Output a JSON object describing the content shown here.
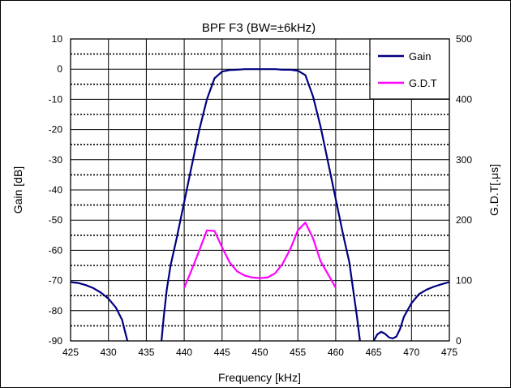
{
  "chart_data": {
    "type": "line",
    "title": "BPF F3 (BW=±6kHz)",
    "xlabel": "Frequency [kHz]",
    "ylabel": "Gain [dB]",
    "y2label": "G.D.T[.μs]",
    "xlim": [
      425,
      475
    ],
    "ylim": [
      -90,
      10
    ],
    "y2lim": [
      0,
      500
    ],
    "x_ticks": [
      "425",
      "430",
      "435",
      "440",
      "445",
      "450",
      "455",
      "460",
      "465",
      "470",
      "475"
    ],
    "y_ticks": [
      "10",
      "0",
      "-10",
      "-20",
      "-30",
      "-40",
      "-50",
      "-60",
      "-70",
      "-80",
      "-90"
    ],
    "y2_ticks": [
      "500",
      "400",
      "300",
      "200",
      "100",
      "0"
    ],
    "grid": true,
    "legend_position": "top-right",
    "series": [
      {
        "name": "Gain",
        "axis": "left",
        "color": "#000080",
        "segments": [
          [
            [
              425,
              -70.5
            ],
            [
              426,
              -70.8
            ],
            [
              427,
              -71.5
            ],
            [
              428,
              -72.5
            ],
            [
              429,
              -74
            ],
            [
              430,
              -76
            ],
            [
              431,
              -79
            ],
            [
              431.8,
              -83
            ],
            [
              432.3,
              -88
            ],
            [
              432.5,
              -90
            ]
          ],
          [
            [
              437,
              -90
            ],
            [
              437.3,
              -82
            ],
            [
              437.7,
              -73
            ],
            [
              438.2,
              -65
            ],
            [
              439,
              -56
            ],
            [
              440,
              -44
            ],
            [
              441,
              -32
            ],
            [
              442,
              -20
            ],
            [
              443,
              -10
            ],
            [
              444,
              -3
            ],
            [
              445,
              -0.8
            ],
            [
              446,
              -0.3
            ],
            [
              447,
              -0.2
            ],
            [
              448,
              0
            ],
            [
              450,
              0
            ],
            [
              452,
              0
            ],
            [
              453,
              -0.2
            ],
            [
              454,
              -0.2
            ],
            [
              455,
              -0.5
            ],
            [
              456,
              -2
            ],
            [
              457,
              -9
            ],
            [
              458,
              -19
            ],
            [
              459,
              -31
            ],
            [
              460,
              -43
            ],
            [
              461,
              -55
            ],
            [
              461.8,
              -64
            ],
            [
              462.3,
              -73
            ],
            [
              462.8,
              -82
            ],
            [
              463.2,
              -90
            ]
          ],
          [
            [
              465,
              -90
            ],
            [
              465.5,
              -87.8
            ],
            [
              466,
              -87
            ],
            [
              466.5,
              -87.6
            ],
            [
              467,
              -88.8
            ],
            [
              467.5,
              -89.2
            ],
            [
              468,
              -88.6
            ],
            [
              468.5,
              -86
            ],
            [
              469,
              -82
            ],
            [
              470,
              -77.5
            ],
            [
              471,
              -74.5
            ],
            [
              472,
              -73
            ],
            [
              473,
              -72
            ],
            [
              474,
              -71.2
            ],
            [
              475,
              -70.5
            ]
          ]
        ]
      },
      {
        "name": "G.D.T",
        "axis": "right",
        "color": "#ff00ff",
        "segments": [
          [
            [
              440,
              88
            ],
            [
              441,
              118
            ],
            [
              442,
              150
            ],
            [
              443,
              183
            ],
            [
              444,
              182
            ],
            [
              445,
              155
            ],
            [
              446,
              130
            ],
            [
              447,
              115
            ],
            [
              448,
              108
            ],
            [
              449,
              105
            ],
            [
              450,
              104
            ],
            [
              451,
              105
            ],
            [
              452,
              112
            ],
            [
              453,
              128
            ],
            [
              454,
              152
            ],
            [
              455,
              183
            ],
            [
              456,
              196
            ],
            [
              457,
              170
            ],
            [
              458,
              132
            ],
            [
              459,
              110
            ],
            [
              460,
              88
            ]
          ]
        ]
      }
    ]
  }
}
